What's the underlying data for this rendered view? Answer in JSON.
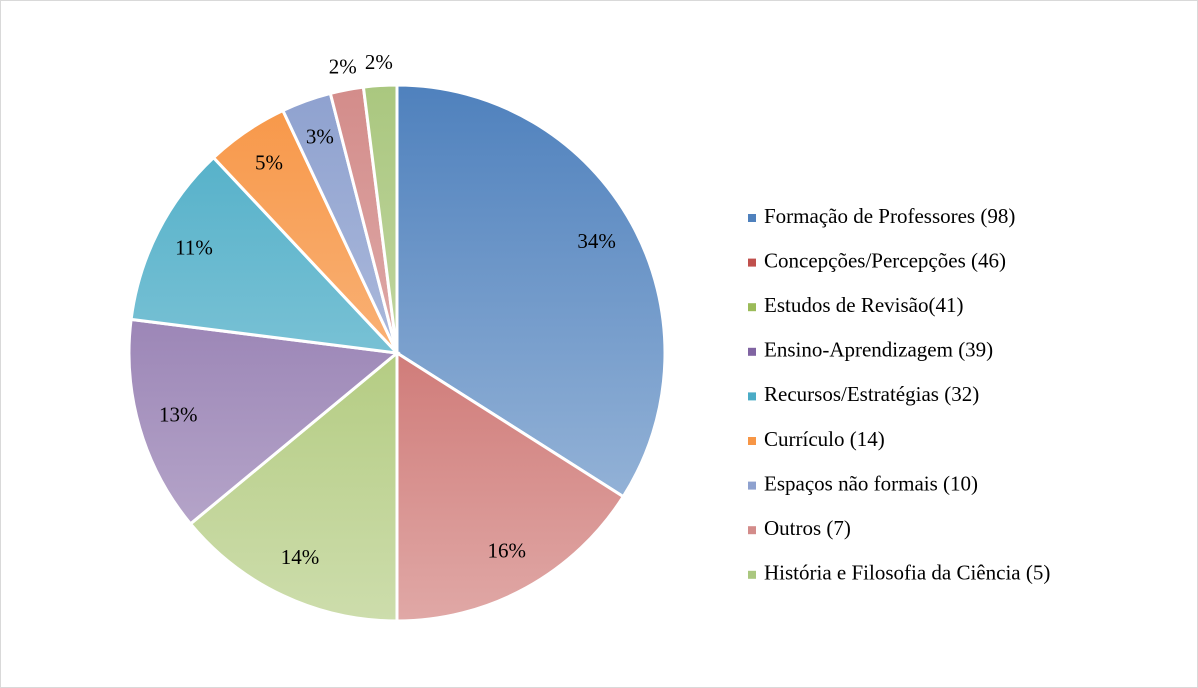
{
  "chart_data": {
    "type": "pie",
    "categories": [
      "Formação de Professores (98)",
      "Concepções/Percepções (46)",
      "Estudos de Revisão(41)",
      "Ensino-Aprendizagem (39)",
      "Recursos/Estratégias (32)",
      "Currículo (14)",
      "Espaços não formais (10)",
      "Outros (7)",
      "História e Filosofia da Ciência (5)"
    ],
    "values": [
      34,
      16,
      14,
      13,
      11,
      5,
      3,
      2,
      2
    ],
    "value_labels": [
      "34%",
      "16%",
      "14%",
      "13%",
      "11%",
      "5%",
      "3%",
      "2%",
      "2%"
    ],
    "colors": [
      "#4f81bd",
      "#c0504d",
      "#9bbb59",
      "#8064a2",
      "#4bacc6",
      "#f79646",
      "#8ea1cf",
      "#d38c8a",
      "#aac77f"
    ],
    "legend": "right"
  }
}
